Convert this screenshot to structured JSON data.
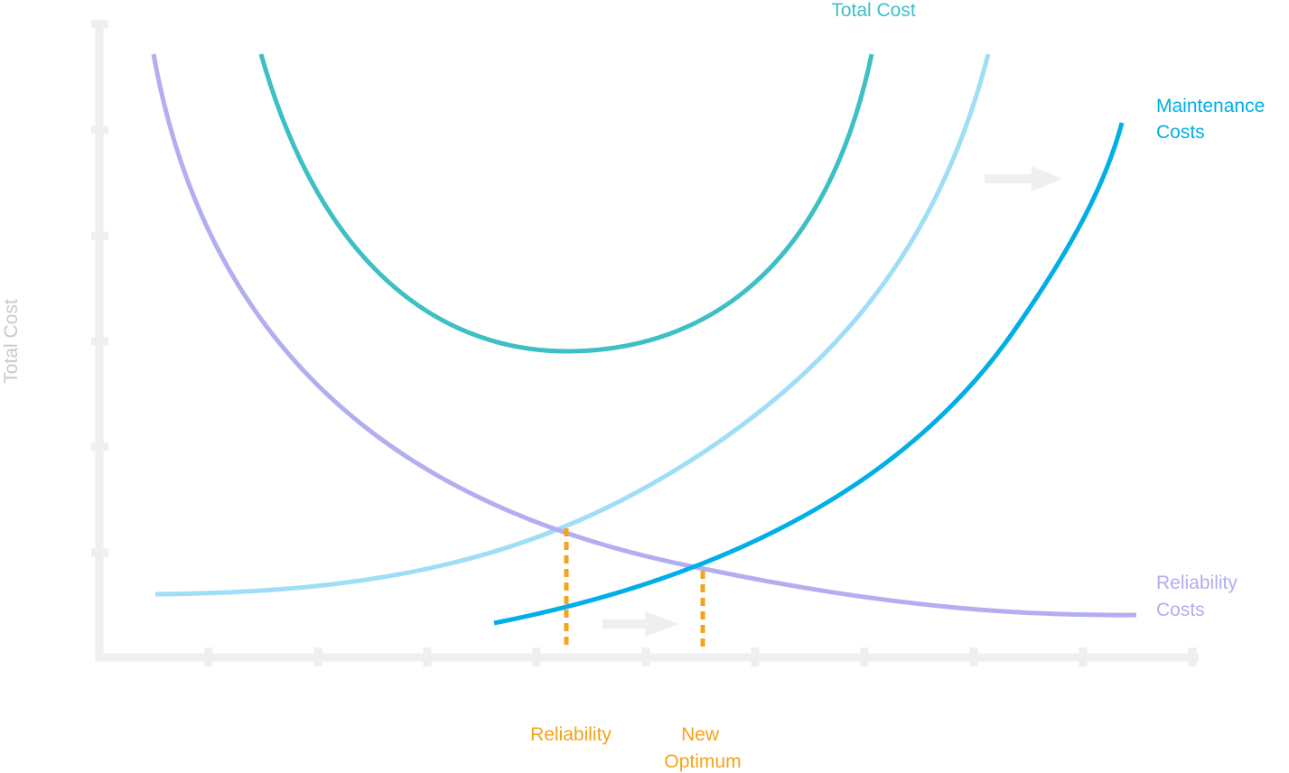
{
  "y_axis_label": "Total Cost",
  "curves": [
    {
      "id": "total-cost",
      "label": [
        "Total Cost"
      ],
      "color": "#3dbfc4"
    },
    {
      "id": "maintenance-costs",
      "label": [
        "Maintenance",
        "Costs"
      ],
      "color": "#00aee8"
    },
    {
      "id": "reliability-costs",
      "label": [
        "Reliability",
        "Costs"
      ],
      "color": "#b2aef0"
    },
    {
      "id": "original-maintenance-costs",
      "label": [],
      "color": "#9fdef6"
    }
  ],
  "markers": [
    {
      "id": "reliability",
      "label": [
        "Reliability"
      ],
      "color": "#f5a31a"
    },
    {
      "id": "new-optimum",
      "label": [
        "New",
        "Optimum"
      ],
      "color": "#f5a31a"
    }
  ],
  "arrows": [
    {
      "id": "shift-arrow-upper",
      "meaning": "right"
    },
    {
      "id": "shift-arrow-lower",
      "meaning": "right"
    }
  ],
  "axis_color": "#efefef",
  "text_colors": {
    "y_axis_label": "#c9c9c9"
  }
}
